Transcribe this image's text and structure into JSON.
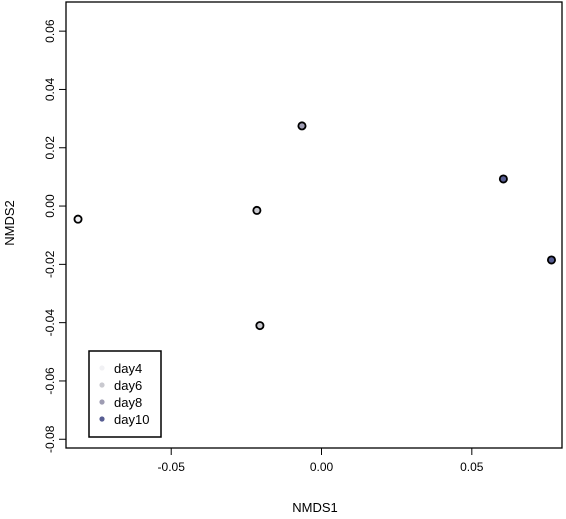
{
  "chart_data": {
    "type": "scatter",
    "xlabel": "NMDS1",
    "ylabel": "NMDS2",
    "xlim": [
      -0.085,
      0.08
    ],
    "ylim": [
      -0.083,
      0.07
    ],
    "x_ticks": [
      {
        "value": -0.05,
        "label": "-0.05"
      },
      {
        "value": 0.0,
        "label": "0.00"
      },
      {
        "value": 0.05,
        "label": "0.05"
      }
    ],
    "y_ticks": [
      {
        "value": -0.08,
        "label": "-0.08"
      },
      {
        "value": -0.06,
        "label": "-0.06"
      },
      {
        "value": -0.04,
        "label": "-0.04"
      },
      {
        "value": -0.02,
        "label": "-0.02"
      },
      {
        "value": 0.0,
        "label": "0.00"
      },
      {
        "value": 0.02,
        "label": "0.02"
      },
      {
        "value": 0.04,
        "label": "0.04"
      },
      {
        "value": 0.06,
        "label": "0.06"
      }
    ],
    "grid": false,
    "legend_position": "bottom-left",
    "series": [
      {
        "name": "day4",
        "color": "#f1f1f4",
        "points": [
          [
            -0.081,
            -0.0045
          ]
        ]
      },
      {
        "name": "day6",
        "color": "#c9c9cf",
        "points": [
          [
            -0.0215,
            -0.0015
          ],
          [
            -0.0205,
            -0.041
          ]
        ]
      },
      {
        "name": "day8",
        "color": "#9e9cb2",
        "points": [
          [
            -0.0065,
            0.0275
          ]
        ]
      },
      {
        "name": "day10",
        "color": "#575d92",
        "points": [
          [
            0.0605,
            0.0093
          ],
          [
            0.0765,
            -0.0185
          ]
        ]
      }
    ]
  }
}
